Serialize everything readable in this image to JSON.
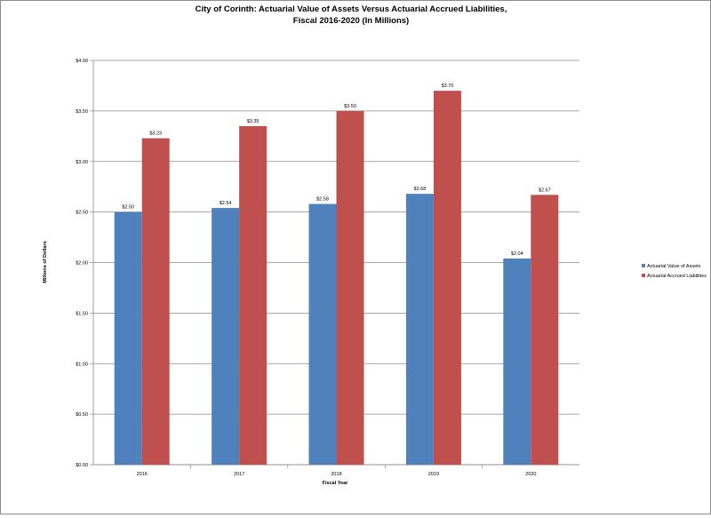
{
  "chart_data": {
    "type": "bar",
    "title_line1": "City of Corinth: Actuarial Value of Assets Versus Actuarial Accrued Liabilities,",
    "title_line2": "Fiscal 2016-2020 (In Millions)",
    "xlabel": "Fiscal Year",
    "ylabel": "Millions of Dollars",
    "categories": [
      "2016",
      "2017",
      "2018",
      "2019",
      "2020"
    ],
    "series": [
      {
        "name": "Actuarial Value of Assets",
        "color": "#4F81BD",
        "values": [
          2.5,
          2.54,
          2.58,
          2.68,
          2.04
        ],
        "labels": [
          "$2.50",
          "$2.54",
          "$2.58",
          "$2.68",
          "$2.04"
        ]
      },
      {
        "name": "Actuarial Accrued Liabilities",
        "color": "#C0504D",
        "values": [
          3.23,
          3.35,
          3.5,
          3.7,
          2.67
        ],
        "labels": [
          "$3.23",
          "$3.35",
          "$3.50",
          "$3.70",
          "$2.67"
        ]
      }
    ],
    "ylim": [
      0,
      4
    ],
    "yticks": [
      0,
      0.5,
      1,
      1.5,
      2,
      2.5,
      3,
      3.5,
      4
    ],
    "ytick_labels": [
      "$0.00",
      "$0.50",
      "$1.00",
      "$1.50",
      "$2.00",
      "$2.50",
      "$3.00",
      "$3.50",
      "$4.00"
    ],
    "grid": true,
    "legend_position": "right"
  }
}
